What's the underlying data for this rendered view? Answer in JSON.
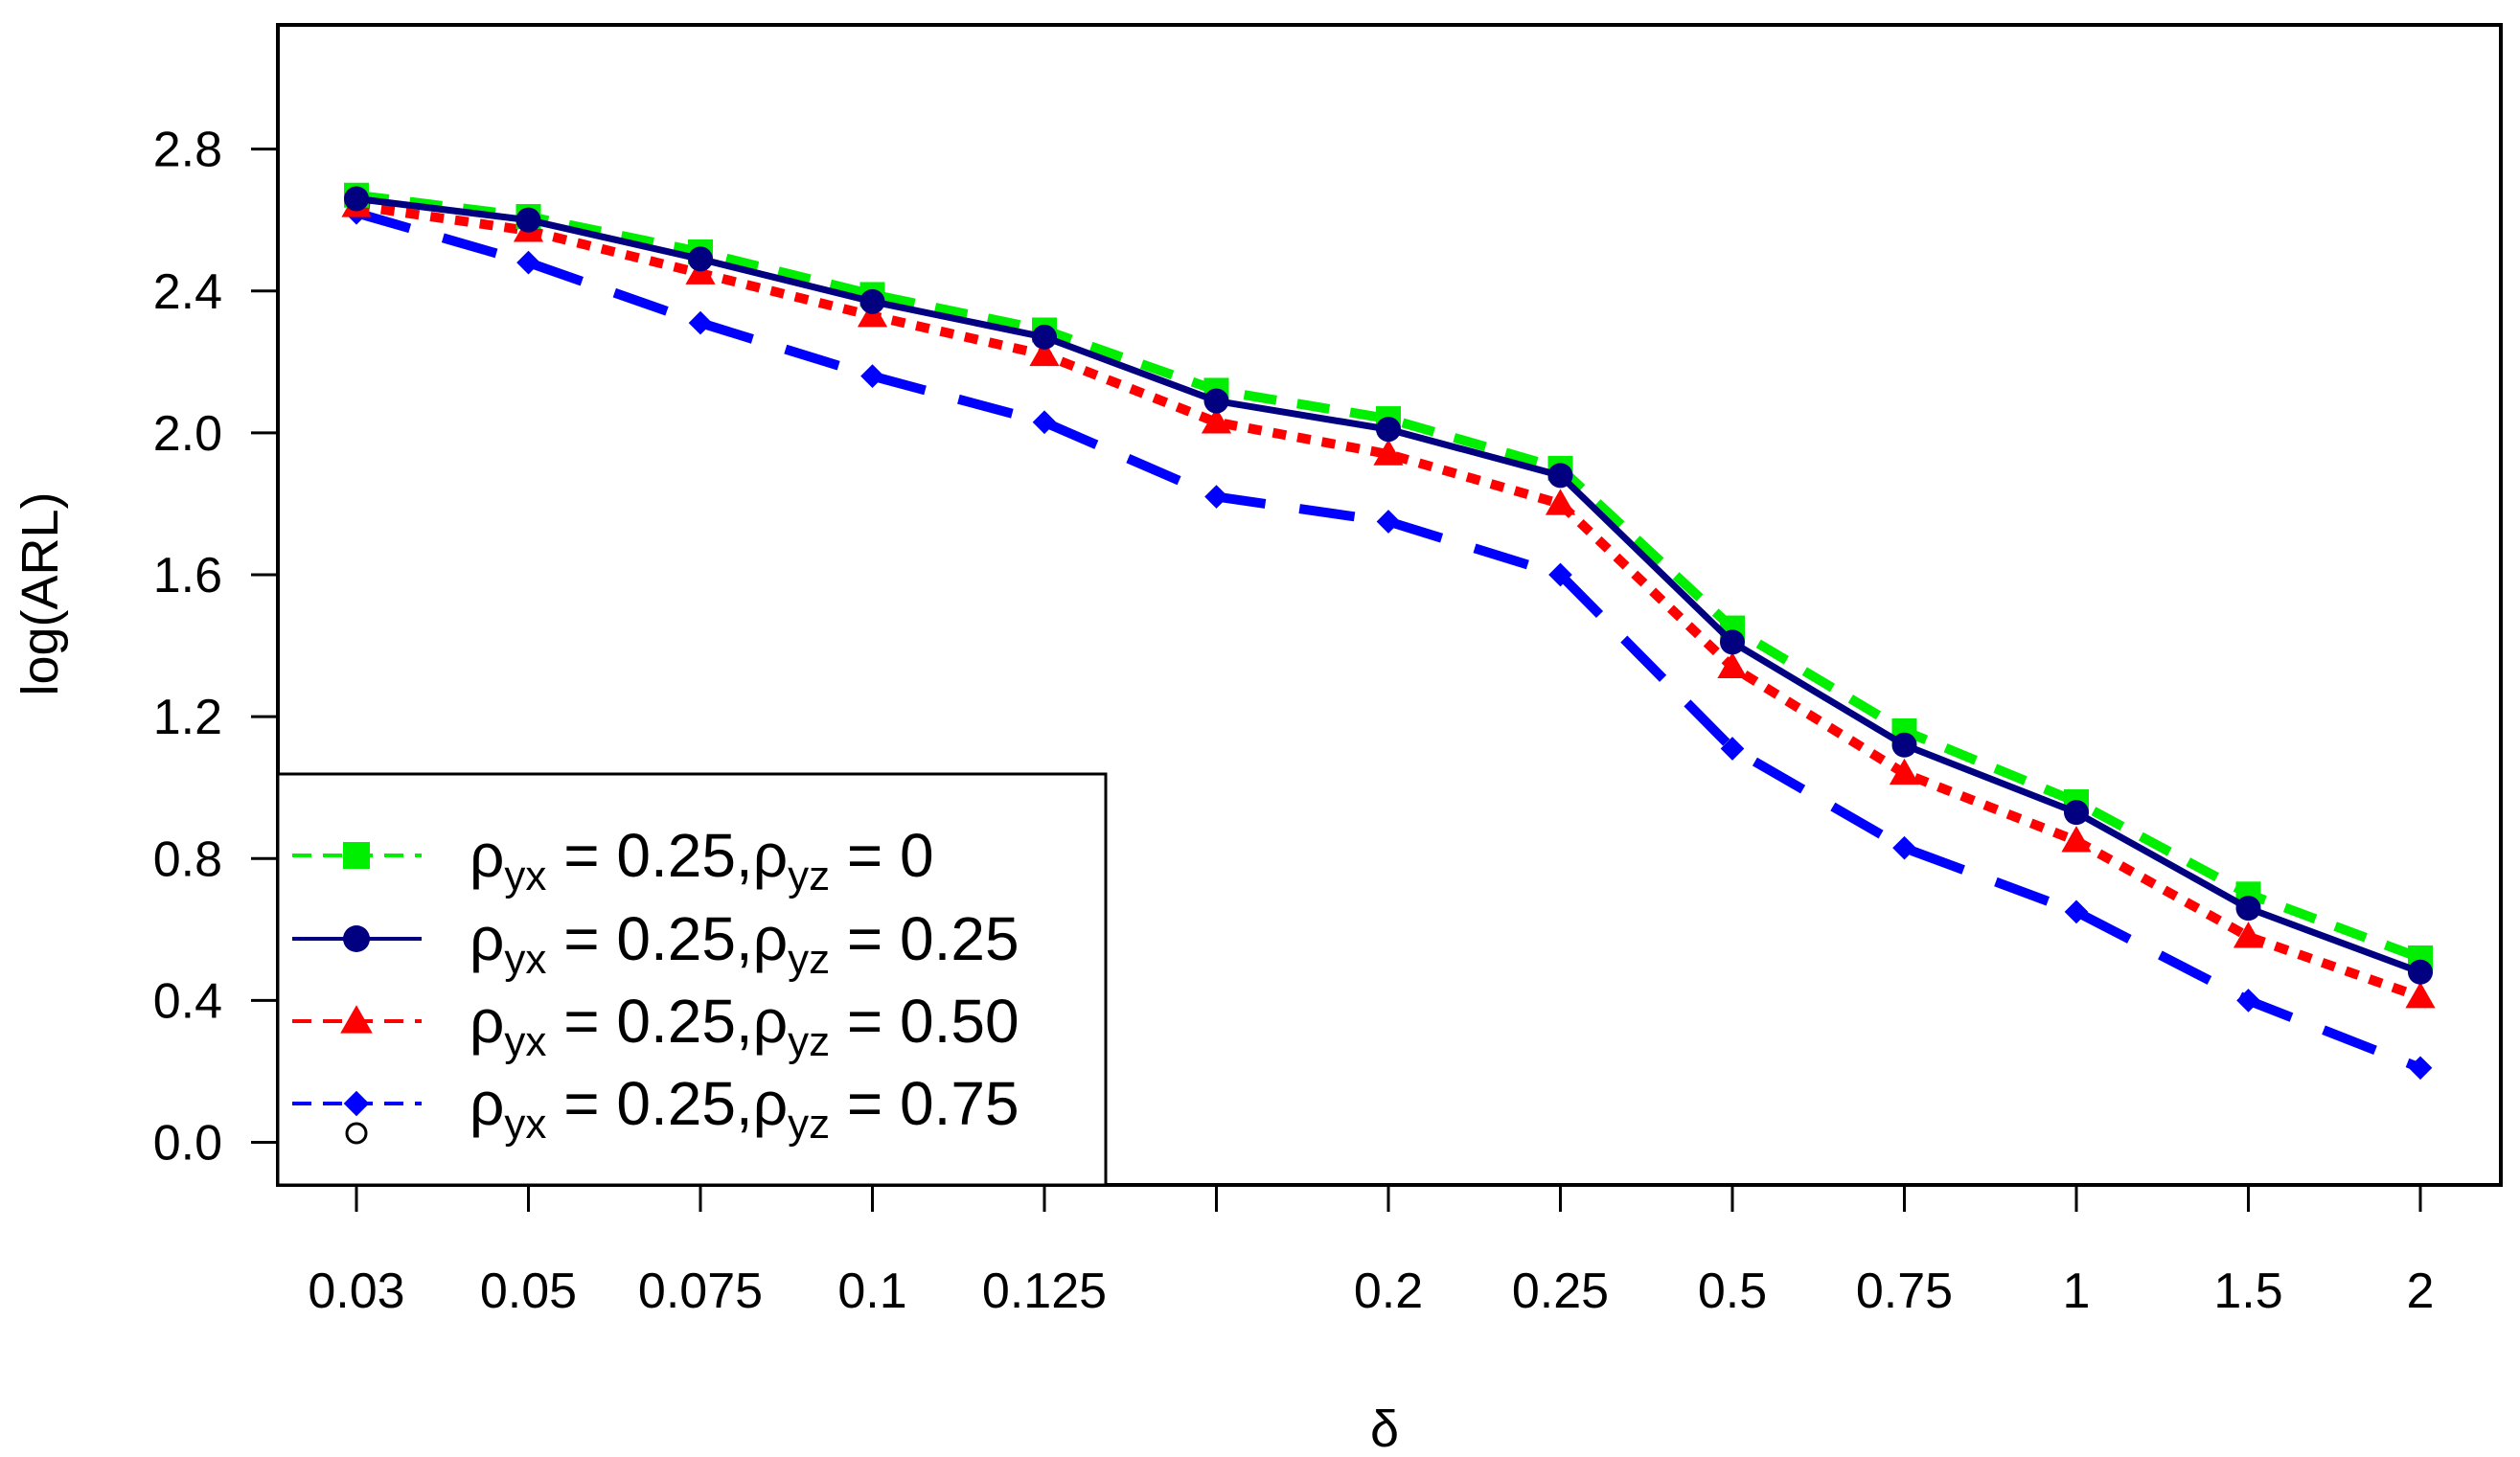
{
  "chart_data": {
    "type": "line",
    "xlabel": "δ",
    "ylabel": "log(ARL)",
    "categories": [
      "0.03",
      "0.05",
      "0.075",
      "0.1",
      "0.125",
      "",
      "0.2",
      "0.25",
      "0.5",
      "0.75",
      "1",
      "1.5",
      "2"
    ],
    "yticks": [
      "0.0",
      "0.4",
      "0.8",
      "1.2",
      "1.6",
      "2.0",
      "2.4",
      "2.8"
    ],
    "ylim": [
      -0.12,
      3.15
    ],
    "grid": false,
    "legend_position": "bottom-left",
    "legend_extra_marker": "open-circle",
    "series": [
      {
        "name": "ρyx = 0.25,ρyz = 0",
        "legend": {
          "rho1": "ρ",
          "sub1": "yx",
          "mid": " = 0.25,",
          "rho2": "ρ",
          "sub2": "yz",
          "tail": " = 0"
        },
        "color": "#00ee00",
        "marker": "square",
        "line_style": "dashed",
        "values": [
          2.67,
          2.61,
          2.51,
          2.39,
          2.29,
          2.12,
          2.04,
          1.9,
          1.45,
          1.16,
          0.96,
          0.7,
          0.52
        ]
      },
      {
        "name": "ρyx = 0.25,ρyz = 0.25",
        "legend": {
          "rho1": "ρ",
          "sub1": "yx",
          "mid": " = 0.25,",
          "rho2": "ρ",
          "sub2": "yz",
          "tail": " = 0.25"
        },
        "color": "#000080",
        "marker": "circle",
        "line_style": "solid",
        "values": [
          2.66,
          2.6,
          2.49,
          2.37,
          2.27,
          2.09,
          2.01,
          1.88,
          1.41,
          1.12,
          0.93,
          0.66,
          0.48
        ]
      },
      {
        "name": "ρyx = 0.25,ρyz = 0.50",
        "legend": {
          "rho1": "ρ",
          "sub1": "yx",
          "mid": " = 0.25,",
          "rho2": "ρ",
          "sub2": "yz",
          "tail": " = 0.50"
        },
        "color": "#ff0000",
        "marker": "triangle",
        "line_style": "dotted",
        "values": [
          2.64,
          2.57,
          2.45,
          2.33,
          2.22,
          2.03,
          1.94,
          1.8,
          1.34,
          1.04,
          0.85,
          0.58,
          0.41
        ]
      },
      {
        "name": "ρyx = 0.25,ρyz = 0.75",
        "legend": {
          "rho1": "ρ",
          "sub1": "yx",
          "mid": " = 0.25,",
          "rho2": "ρ",
          "sub2": "yz",
          "tail": " = 0.75"
        },
        "color": "#0000ff",
        "marker": "diamond",
        "line_style": "longdash",
        "values": [
          2.62,
          2.48,
          2.31,
          2.16,
          2.03,
          1.82,
          1.75,
          1.6,
          1.11,
          0.83,
          0.65,
          0.4,
          0.21
        ]
      }
    ]
  }
}
